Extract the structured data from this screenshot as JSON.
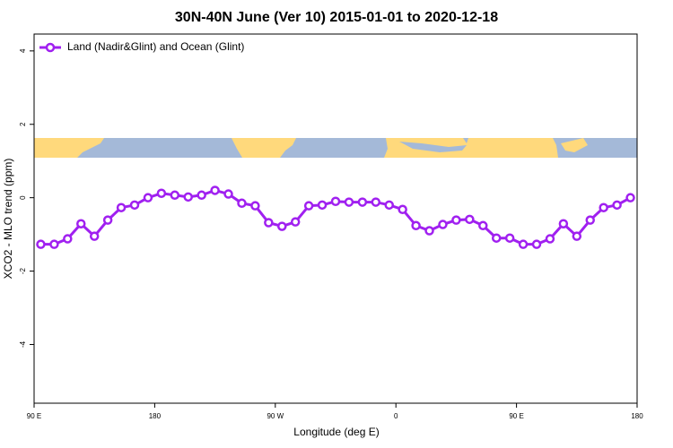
{
  "chart_data": {
    "type": "line",
    "title": "30N-40N June (Ver 10)   2015-01-01 to 2020-12-18",
    "x_label": "Longitude (deg E)",
    "y_label": "XCO2 - MLO trend (ppm)",
    "x": [
      95,
      105,
      115,
      125,
      135,
      145,
      155,
      165,
      175,
      185,
      195,
      205,
      215,
      225,
      235,
      245,
      255,
      265,
      275,
      285,
      295,
      305,
      315,
      325,
      335,
      345,
      355,
      365,
      375,
      385,
      395,
      405,
      415,
      425,
      435,
      445,
      455,
      465,
      475,
      485,
      495,
      505,
      515,
      525,
      535
    ],
    "series": [
      {
        "name": "Land (Nadir&Glint) and Ocean (Glint)",
        "color": "#a020f0",
        "values": [
          -1.27,
          -1.27,
          -1.12,
          -0.71,
          -1.05,
          -0.61,
          -0.27,
          -0.2,
          0,
          0.12,
          0.07,
          0.02,
          0.07,
          0.2,
          0.1,
          -0.15,
          -0.22,
          -0.68,
          -0.78,
          -0.66,
          -0.22,
          -0.2,
          -0.1,
          -0.12,
          -0.12,
          -0.12,
          -0.2,
          -0.32,
          -0.76,
          -0.9,
          -0.73,
          -0.61,
          -0.59,
          -0.76,
          -1.1,
          -1.1,
          -1.27,
          -1.27,
          -1.12,
          -0.71,
          -1.05,
          -0.61,
          -0.27,
          -0.2,
          0
        ]
      }
    ],
    "xlim": [
      90,
      540
    ],
    "xticks": [
      {
        "value": 90,
        "label": "90 E"
      },
      {
        "value": 180,
        "label": "180"
      },
      {
        "value": 270,
        "label": "90 W"
      },
      {
        "value": 360,
        "label": "0"
      },
      {
        "value": 450,
        "label": "90 E"
      },
      {
        "value": 540,
        "label": "180"
      }
    ],
    "ylim": [
      -5.6,
      4.46
    ],
    "yticks": [
      -4,
      -2,
      0,
      2,
      4
    ],
    "legend": "top-left"
  }
}
